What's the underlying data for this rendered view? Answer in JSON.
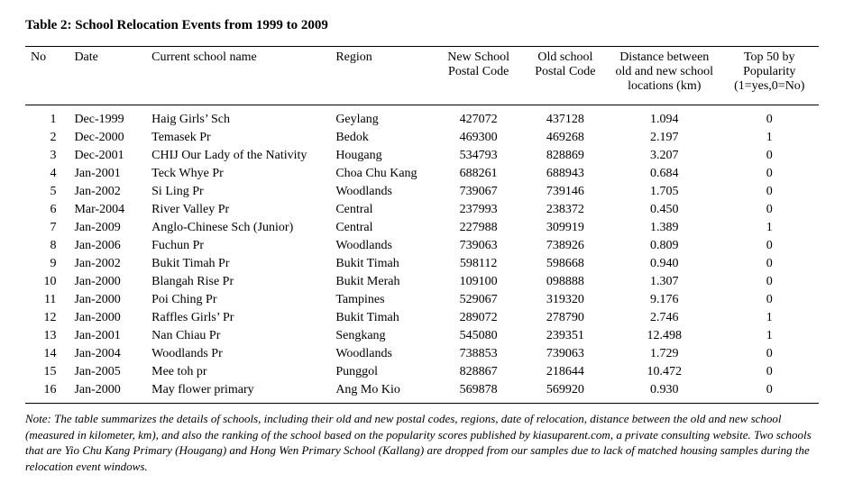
{
  "title": "Table 2: School Relocation Events from 1999 to 2009",
  "columns": [
    "No",
    "Date",
    "Current school name",
    "Region",
    "New School Postal Code",
    "Old school Postal Code",
    "Distance between old and new school locations (km)",
    "Top 50 by Popularity (1=yes,0=No)"
  ],
  "rows": [
    {
      "no": "1",
      "date": "Dec-1999",
      "name": "Haig Girls’ Sch",
      "region": "Geylang",
      "new": "427072",
      "old": "437128",
      "dist": "1.094",
      "top": "0"
    },
    {
      "no": "2",
      "date": "Dec-2000",
      "name": "Temasek Pr",
      "region": "Bedok",
      "new": "469300",
      "old": "469268",
      "dist": "2.197",
      "top": "1"
    },
    {
      "no": "3",
      "date": "Dec-2001",
      "name": "CHIJ Our Lady of the Nativity",
      "region": "Hougang",
      "new": "534793",
      "old": "828869",
      "dist": "3.207",
      "top": "0"
    },
    {
      "no": "4",
      "date": "Jan-2001",
      "name": "Teck Whye Pr",
      "region": "Choa Chu Kang",
      "new": "688261",
      "old": "688943",
      "dist": "0.684",
      "top": "0"
    },
    {
      "no": "5",
      "date": "Jan-2002",
      "name": "Si Ling Pr",
      "region": "Woodlands",
      "new": "739067",
      "old": "739146",
      "dist": "1.705",
      "top": "0"
    },
    {
      "no": "6",
      "date": "Mar-2004",
      "name": "River Valley Pr",
      "region": "Central",
      "new": "237993",
      "old": "238372",
      "dist": "0.450",
      "top": "0"
    },
    {
      "no": "7",
      "date": "Jan-2009",
      "name": "Anglo-Chinese Sch (Junior)",
      "region": "Central",
      "new": "227988",
      "old": "309919",
      "dist": "1.389",
      "top": "1"
    },
    {
      "no": "8",
      "date": "Jan-2006",
      "name": "Fuchun Pr",
      "region": "Woodlands",
      "new": "739063",
      "old": "738926",
      "dist": "0.809",
      "top": "0"
    },
    {
      "no": "9",
      "date": "Jan-2002",
      "name": "Bukit Timah Pr",
      "region": "Bukit Timah",
      "new": "598112",
      "old": "598668",
      "dist": "0.940",
      "top": "0"
    },
    {
      "no": "10",
      "date": "Jan-2000",
      "name": "Blangah Rise Pr",
      "region": "Bukit Merah",
      "new": "109100",
      "old": "098888",
      "dist": "1.307",
      "top": "0"
    },
    {
      "no": "11",
      "date": "Jan-2000",
      "name": "Poi Ching Pr",
      "region": "Tampines",
      "new": "529067",
      "old": "319320",
      "dist": "9.176",
      "top": "0"
    },
    {
      "no": "12",
      "date": "Jan-2000",
      "name": "Raffles Girls’ Pr",
      "region": "Bukit Timah",
      "new": "289072",
      "old": "278790",
      "dist": "2.746",
      "top": "1"
    },
    {
      "no": "13",
      "date": "Jan-2001",
      "name": "Nan Chiau Pr",
      "region": "Sengkang",
      "new": "545080",
      "old": "239351",
      "dist": "12.498",
      "top": "1"
    },
    {
      "no": "14",
      "date": "Jan-2004",
      "name": "Woodlands Pr",
      "region": "Woodlands",
      "new": "738853",
      "old": "739063",
      "dist": "1.729",
      "top": "0"
    },
    {
      "no": "15",
      "date": "Jan-2005",
      "name": "Mee toh pr",
      "region": "Punggol",
      "new": "828867",
      "old": "218644",
      "dist": "10.472",
      "top": "0"
    },
    {
      "no": "16",
      "date": "Jan-2000",
      "name": "May flower primary",
      "region": "Ang Mo Kio",
      "new": "569878",
      "old": "569920",
      "dist": "0.930",
      "top": "0"
    }
  ],
  "note": "Note: The table summarizes the details of schools, including their old and new postal codes, regions, date of relocation, distance between the old and new school (measured in kilometer, km), and also the ranking of the school based on the popularity scores published by kiasuparent.com, a private consulting website. Two schools that are Yio Chu Kang Primary (Hougang) and Hong Wen Primary School (Kallang) are dropped from our samples due to lack of matched housing samples during the relocation event windows."
}
